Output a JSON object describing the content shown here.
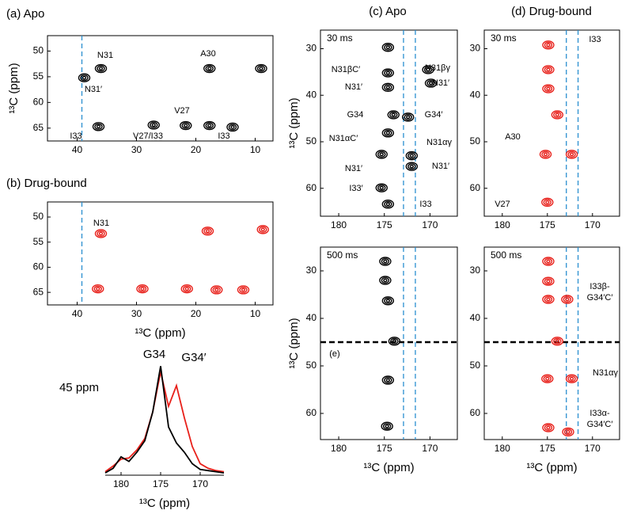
{
  "chart_data": [
    {
      "type": "contour",
      "title": "(a) Apo",
      "ylabel": "¹³C (ppm)",
      "xlim": [
        45,
        7
      ],
      "ylim": [
        47,
        67.5
      ],
      "xticks": [
        40,
        30,
        20,
        10
      ],
      "yticks": [
        50,
        55,
        60,
        65
      ],
      "vlines": [
        39.2
      ],
      "vline_color": "#2a8fd0",
      "series": [
        {
          "color": "#000000",
          "x": [
            38.8,
            36,
            17.7,
            9,
            36.4,
            27.1,
            21.7,
            17.7,
            13.8
          ],
          "values": [
            55.2,
            53.4,
            53.4,
            53.4,
            64.7,
            64.4,
            64.5,
            64.5,
            64.8
          ]
        }
      ],
      "annotations": [
        "N31",
        "N31′",
        "A30",
        "V27",
        "I33",
        "V27/I33",
        "I33"
      ],
      "annotation_color": "#2a7bb8"
    },
    {
      "type": "contour",
      "title": "(b) Drug-bound",
      "xlabel": "¹³C (ppm)",
      "xlim": [
        45,
        7
      ],
      "ylim": [
        47,
        67.5
      ],
      "xticks": [
        40,
        30,
        20,
        10
      ],
      "yticks": [
        50,
        55,
        60,
        65
      ],
      "vlines": [
        39.2
      ],
      "vline_color": "#2a8fd0",
      "series": [
        {
          "color": "#e8201a",
          "x": [
            36,
            18,
            8.7,
            36.5,
            29,
            21.5,
            16.5,
            12
          ],
          "values": [
            53.3,
            52.8,
            52.5,
            64.3,
            64.3,
            64.3,
            64.5,
            64.5
          ]
        }
      ],
      "annotations": [
        "N31"
      ],
      "annotation_color": "#2a7bb8"
    },
    {
      "type": "contour",
      "title": "(c) Apo",
      "label": "30 ms",
      "ylabel": "¹³C (ppm)",
      "xlim": [
        182,
        167
      ],
      "ylim": [
        26,
        66
      ],
      "xticks": [
        180,
        175,
        170
      ],
      "yticks": [
        30,
        40,
        50,
        60
      ],
      "vlines": [
        172.9,
        171.6
      ],
      "vline_color": "#2a8fd0",
      "series": [
        {
          "color": "#000000",
          "x": [
            174.6,
            174.6,
            174.6,
            174,
            172.4,
            174.6,
            175.3,
            172,
            172,
            170.2,
            169.9,
            175.3,
            174.6
          ],
          "values": [
            29.7,
            35.2,
            38.3,
            44.2,
            44.7,
            48.1,
            52.7,
            53,
            55.3,
            34.5,
            37.4,
            59.9,
            63.4
          ]
        }
      ],
      "annotations": [
        "N31βC′",
        "N31βγ",
        "N31′",
        "N31′",
        "G34",
        "G34′",
        "N31αC′",
        "N31αγ",
        "N31′",
        "N31′",
        "I33′",
        "I33"
      ],
      "annotation_color": "#2a7bb8"
    },
    {
      "type": "contour",
      "label": "500 ms",
      "ylabel": "¹³C (ppm)",
      "xlabel": "¹³C (ppm)",
      "xlim": [
        182,
        167
      ],
      "ylim": [
        25,
        65.5
      ],
      "xticks": [
        180,
        175,
        170
      ],
      "yticks": [
        30,
        40,
        50,
        60
      ],
      "vlines": [
        172.9,
        171.6
      ],
      "vline_color": "#2a8fd0",
      "hline": 45,
      "series": [
        {
          "color": "#000000",
          "x": [
            174.9,
            174.9,
            174.6,
            173.9,
            174.6,
            174.7
          ],
          "values": [
            28,
            32,
            36.3,
            44.8,
            53,
            62.7
          ]
        }
      ],
      "annotations": [
        "(e)"
      ],
      "annotation_color": "#000000"
    },
    {
      "type": "contour",
      "title": "(d) Drug-bound",
      "label": "30 ms",
      "xlim": [
        182,
        167
      ],
      "ylim": [
        26,
        66
      ],
      "xticks": [
        180,
        175,
        170
      ],
      "yticks": [
        30,
        40,
        50,
        60
      ],
      "vlines": [
        172.9,
        171.6
      ],
      "vline_color": "#2a8fd0",
      "series": [
        {
          "color": "#e8201a",
          "x": [
            174.9,
            174.9,
            174.9,
            173.9,
            175.2,
            172.3,
            175
          ],
          "values": [
            29.2,
            34.5,
            38.6,
            44.2,
            52.7,
            52.7,
            63
          ]
        }
      ],
      "annotations": [
        "I33",
        "A30",
        "V27"
      ],
      "annotation_color": "#2a7bb8"
    },
    {
      "type": "contour",
      "label": "500 ms",
      "xlabel": "¹³C (ppm)",
      "xlim": [
        182,
        167
      ],
      "ylim": [
        25,
        65.5
      ],
      "xticks": [
        180,
        175,
        170
      ],
      "yticks": [
        30,
        40,
        50,
        60
      ],
      "vlines": [
        172.9,
        171.6
      ],
      "vline_color": "#2a8fd0",
      "hline": 45,
      "series": [
        {
          "color": "#e8201a",
          "x": [
            174.9,
            174.9,
            174.9,
            172.8,
            173.9,
            175,
            172.3,
            174.9,
            172.7
          ],
          "values": [
            28,
            32.2,
            36,
            36,
            44.8,
            52.7,
            52.7,
            63,
            63.9
          ]
        }
      ],
      "annotations": [
        [
          "I33β-",
          "G34′C′"
        ],
        "N31αγ",
        [
          "I33α-",
          "G34′C′"
        ]
      ],
      "annotation_color": "#2a7bb8"
    },
    {
      "type": "line",
      "xlabel": "¹³C (ppm)",
      "xlim": [
        182,
        167
      ],
      "ylim": [
        0,
        1
      ],
      "xticks": [
        180,
        175,
        170
      ],
      "x": [
        182,
        181,
        180,
        179,
        178,
        177,
        176,
        175,
        174,
        173,
        172,
        171,
        170,
        169,
        168,
        167
      ],
      "series": [
        {
          "color": "#e8201a",
          "values": [
            0.03,
            0.08,
            0.14,
            0.15,
            0.22,
            0.32,
            0.55,
            0.9,
            0.6,
            0.78,
            0.5,
            0.25,
            0.1,
            0.06,
            0.04,
            0.03
          ]
        },
        {
          "color": "#000000",
          "values": [
            0.02,
            0.06,
            0.16,
            0.12,
            0.2,
            0.3,
            0.55,
            0.95,
            0.42,
            0.28,
            0.2,
            0.1,
            0.05,
            0.04,
            0.03,
            0.02
          ]
        }
      ],
      "annotations": [
        "G34",
        "G34′",
        "45 ppm"
      ],
      "annotation_color": "#2a7bb8"
    }
  ]
}
